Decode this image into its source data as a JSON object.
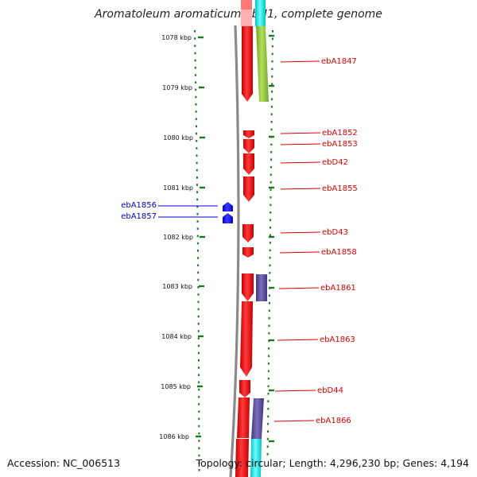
{
  "title": "Aromatoleum aromaticum EbN1, complete genome",
  "footer": {
    "accession": "Accession: NC_006513",
    "topology": "Topology: circular; Length: 4,296,230 bp; Genes: 4,194"
  },
  "colors": {
    "tick": "#1a7a1a",
    "backbone": "#8a8a8a",
    "forward_gene": "#ee0000",
    "reverse_gene": "#0000ee",
    "label_forward": "#dd0000",
    "label_reverse": "#0000cc",
    "feature_green": "#8ec63f",
    "feature_purple": "#5a4f9e",
    "feature_cyan": "#00e5e5"
  },
  "ticks": [
    {
      "label": "1078 kbp"
    },
    {
      "label": "1079 kbp"
    },
    {
      "label": "1080 kbp"
    },
    {
      "label": "1081 kbp"
    },
    {
      "label": "1082 kbp"
    },
    {
      "label": "1083 kbp"
    },
    {
      "label": "1084 kbp"
    },
    {
      "label": "1085 kbp"
    },
    {
      "label": "1086 kbp"
    }
  ],
  "forward_genes": [
    {
      "label": "ebA1847"
    },
    {
      "label": "ebA1852"
    },
    {
      "label": "ebA1853"
    },
    {
      "label": "ebD42"
    },
    {
      "label": "ebA1855"
    },
    {
      "label": "ebD43"
    },
    {
      "label": "ebA1858"
    },
    {
      "label": "ebA1861"
    },
    {
      "label": "ebA1863"
    },
    {
      "label": "ebD44"
    },
    {
      "label": "ebA1866"
    }
  ],
  "reverse_genes": [
    {
      "label": "ebA1856"
    },
    {
      "label": "ebA1857"
    }
  ]
}
